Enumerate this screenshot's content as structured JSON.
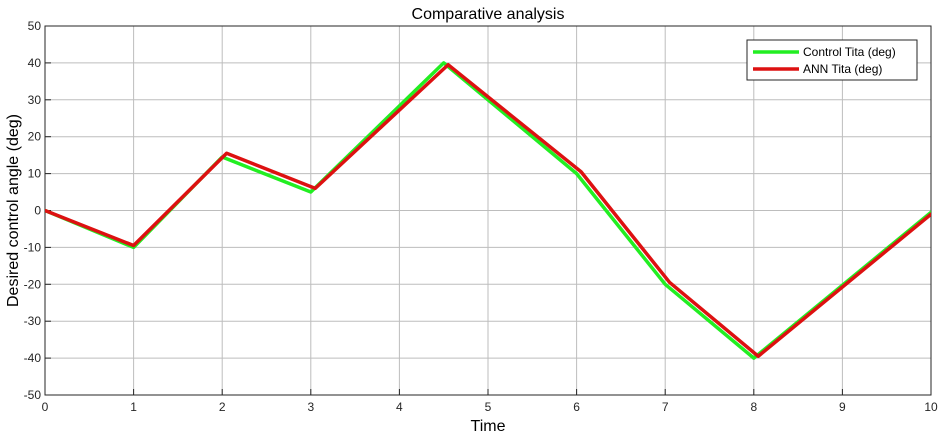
{
  "chart_data": {
    "type": "line",
    "title": "Comparative analysis",
    "xlabel": "Time",
    "ylabel": "Desired control angle (deg)",
    "xlim": [
      0,
      10
    ],
    "ylim": [
      -50,
      50
    ],
    "x_ticks": [
      0,
      1,
      2,
      3,
      4,
      5,
      6,
      7,
      8,
      9,
      10
    ],
    "y_ticks": [
      -50,
      -40,
      -30,
      -20,
      -10,
      0,
      10,
      20,
      30,
      40,
      50
    ],
    "grid": true,
    "legend_position": "top-right",
    "series": [
      {
        "name": "Control Tita (deg)",
        "color": "#22ee22",
        "x": [
          0,
          1,
          2,
          3,
          4.5,
          6,
          7,
          8,
          10
        ],
        "y": [
          0,
          -10,
          14.5,
          5,
          40,
          10,
          -20,
          -40,
          -0.5
        ]
      },
      {
        "name": "ANN Tita (deg)",
        "color": "#dd1111",
        "x": [
          0,
          1,
          2.05,
          3.05,
          4.55,
          6.05,
          7.05,
          8.05,
          10
        ],
        "y": [
          0,
          -9.5,
          15.5,
          6,
          39.5,
          10.5,
          -19.5,
          -39.5,
          -1
        ]
      }
    ]
  }
}
